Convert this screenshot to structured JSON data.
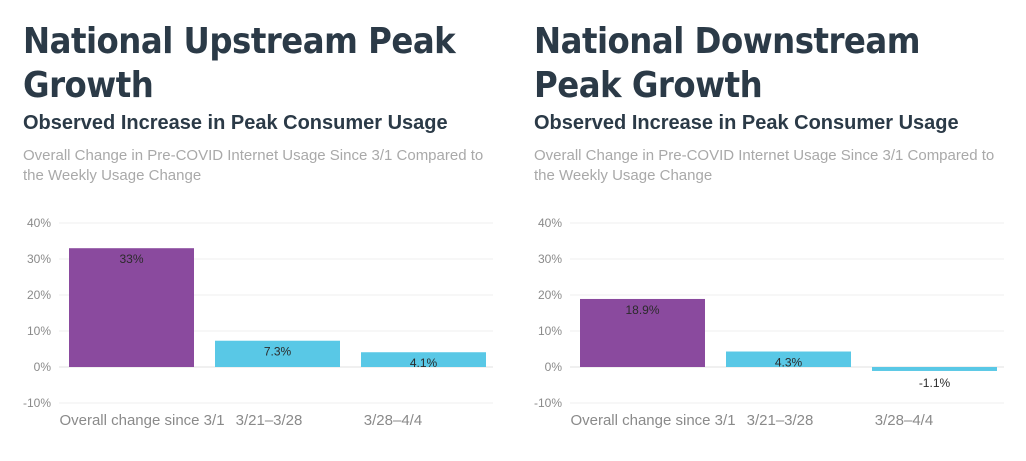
{
  "chart_data": [
    {
      "type": "bar",
      "title": "National Upstream Peak Growth",
      "subtitle": "Observed Increase in Peak Consumer Usage",
      "description": "Overall Change in Pre-COVID Internet Usage Since 3/1 Compared to the Weekly Usage Change",
      "categories": [
        "Overall change since 3/1",
        "3/21–3/28",
        "3/28–4/4"
      ],
      "values": [
        33,
        7.3,
        4.1
      ],
      "data_labels": [
        "33%",
        "7.3%",
        "4.1%"
      ],
      "colors": [
        "#8a4a9e",
        "#59c8e6",
        "#59c8e6"
      ],
      "ylim": [
        -10,
        40
      ],
      "yticks": [
        40,
        30,
        20,
        10,
        0,
        -10
      ],
      "ytick_labels": [
        "40%",
        "30%",
        "20%",
        "10%",
        "0%",
        "-10%"
      ],
      "xlabel": "",
      "ylabel": "",
      "grid": true
    },
    {
      "type": "bar",
      "title": "National Downstream Peak Growth",
      "subtitle": "Observed Increase in Peak Consumer Usage",
      "description": "Overall Change in Pre-COVID Internet Usage Since 3/1 Compared to the Weekly Usage Change",
      "categories": [
        "Overall change since 3/1",
        "3/21–3/28",
        "3/28–4/4"
      ],
      "values": [
        18.9,
        4.3,
        -1.1
      ],
      "data_labels": [
        "18.9%",
        "4.3%",
        "-1.1%"
      ],
      "colors": [
        "#8a4a9e",
        "#59c8e6",
        "#59c8e6"
      ],
      "ylim": [
        -10,
        40
      ],
      "yticks": [
        40,
        30,
        20,
        10,
        0,
        -10
      ],
      "ytick_labels": [
        "40%",
        "30%",
        "20%",
        "10%",
        "0%",
        "-10%"
      ],
      "xlabel": "",
      "ylabel": "",
      "grid": true
    }
  ]
}
